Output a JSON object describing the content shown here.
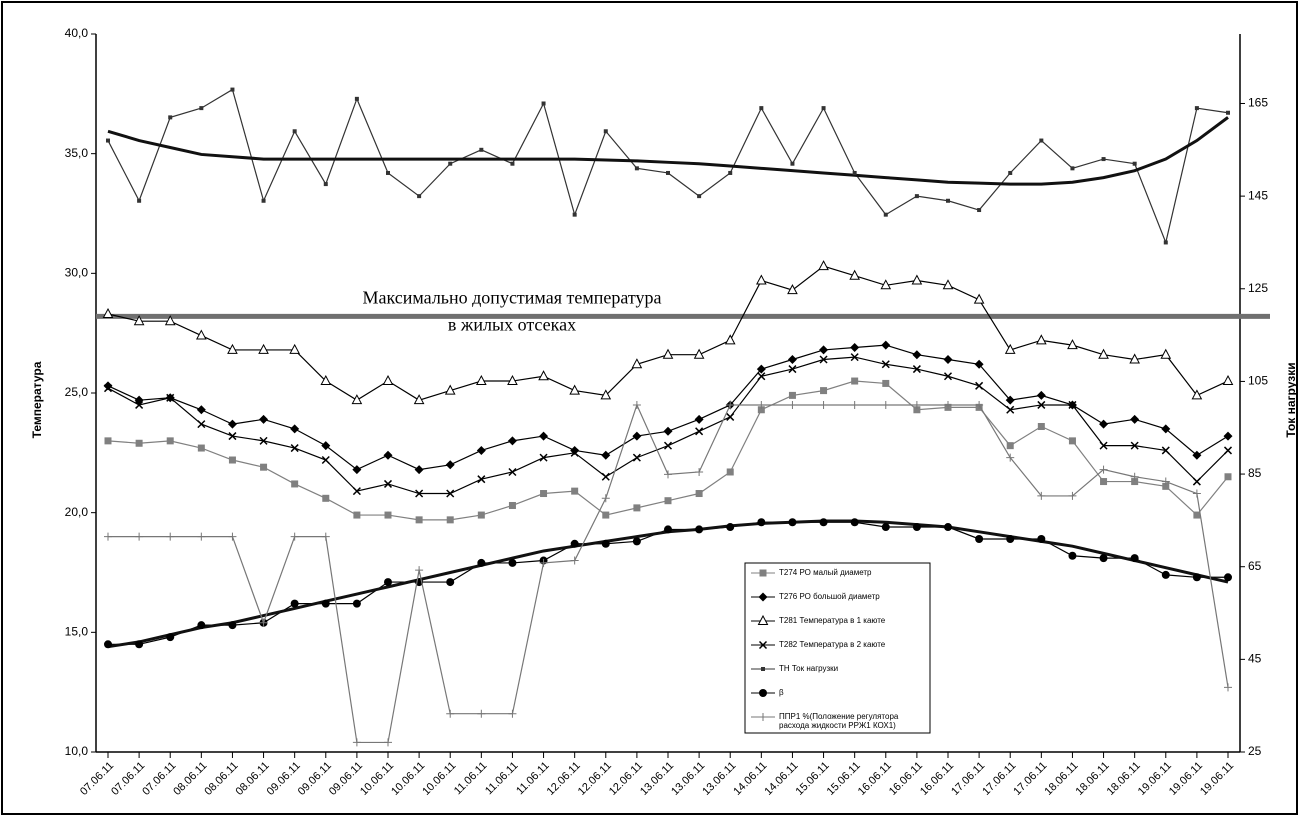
{
  "chart_data": {
    "type": "line",
    "y_label": "Температура",
    "y2_label": "Ток нагрузки",
    "categories": [
      "07.06.11",
      "07.06.11",
      "07.06.11",
      "08.06.11",
      "08.06.11",
      "08.06.11",
      "09.06.11",
      "09.06.11",
      "09.06.11",
      "10.06.11",
      "10.06.11",
      "10.06.11",
      "11.06.11",
      "11.06.11",
      "11.06.11",
      "12.06.11",
      "12.06.11",
      "12.06.11",
      "13.06.11",
      "13.06.11",
      "13.06.11",
      "14.06.11",
      "14.06.11",
      "15.06.11",
      "15.06.11",
      "16.06.11",
      "16.06.11",
      "16.06.11",
      "17.06.11",
      "17.06.11",
      "17.06.11",
      "18.06.11",
      "18.06.11",
      "18.06.11",
      "19.06.11",
      "19.06.11",
      "19.06.11"
    ],
    "ylim": [
      10,
      40
    ],
    "yticks": [
      {
        "value": 10,
        "label": "10,0"
      },
      {
        "value": 15,
        "label": "15,0"
      },
      {
        "value": 20,
        "label": "20,0"
      },
      {
        "value": 25,
        "label": "25,0"
      },
      {
        "value": 30,
        "label": "30,0"
      },
      {
        "value": 35,
        "label": "35,0"
      },
      {
        "value": 40,
        "label": "40,0"
      }
    ],
    "y2lim": [
      25,
      180
    ],
    "y2ticks": [
      25,
      45,
      65,
      85,
      105,
      125,
      145,
      165
    ],
    "threshold": {
      "value": 28.2,
      "color": "#707070",
      "lines": [
        "Максимально допустимая температура",
        "в жилых отсеках"
      ]
    },
    "series": [
      {
        "name": "Т274 РО малый диаметр",
        "color": "#808080",
        "marker": "square",
        "values": [
          23.0,
          22.9,
          23.0,
          22.7,
          22.2,
          21.9,
          21.2,
          20.6,
          19.9,
          19.9,
          19.7,
          19.7,
          19.9,
          20.3,
          20.8,
          20.9,
          19.9,
          20.2,
          20.5,
          20.8,
          21.7,
          24.3,
          24.9,
          25.1,
          25.5,
          25.4,
          24.3,
          24.4,
          24.4,
          22.8,
          23.6,
          23.0,
          21.3,
          21.3,
          21.1,
          19.9,
          21.5
        ]
      },
      {
        "name": "Т276 РО большой диаметр",
        "color": "#000000",
        "marker": "diamond",
        "values": [
          25.3,
          24.7,
          24.8,
          24.3,
          23.7,
          23.9,
          23.5,
          22.8,
          21.8,
          22.4,
          21.8,
          22.0,
          22.6,
          23.0,
          23.2,
          22.6,
          22.4,
          23.2,
          23.4,
          23.9,
          24.5,
          26.0,
          26.4,
          26.8,
          26.9,
          27.0,
          26.6,
          26.4,
          26.2,
          24.7,
          24.9,
          24.5,
          23.7,
          23.9,
          23.5,
          22.4,
          23.2
        ]
      },
      {
        "name": "Т281 Температура в 1 каюте",
        "color": "#000000",
        "marker": "triangle",
        "values": [
          28.3,
          28.0,
          28.0,
          27.4,
          26.8,
          26.8,
          26.8,
          25.5,
          24.7,
          25.5,
          24.7,
          25.1,
          25.5,
          25.5,
          25.7,
          25.1,
          24.9,
          26.2,
          26.6,
          26.6,
          27.2,
          29.7,
          29.3,
          30.3,
          29.9,
          29.5,
          29.7,
          29.5,
          28.9,
          26.8,
          27.2,
          27.0,
          26.6,
          26.4,
          26.6,
          24.9,
          25.5
        ]
      },
      {
        "name": "Т282 Температура в 2 каюте",
        "color": "#000000",
        "marker": "cross",
        "values": [
          25.2,
          24.5,
          24.8,
          23.7,
          23.2,
          23.0,
          22.7,
          22.2,
          20.9,
          21.2,
          20.8,
          20.8,
          21.4,
          21.7,
          22.3,
          22.5,
          21.5,
          22.3,
          22.8,
          23.4,
          24.0,
          25.7,
          26.0,
          26.4,
          26.5,
          26.2,
          26.0,
          25.7,
          25.3,
          24.3,
          24.5,
          24.5,
          22.8,
          22.8,
          22.6,
          21.3,
          22.6
        ]
      },
      {
        "name": "ТН Ток нагрузки",
        "color": "#333333",
        "marker": "dot",
        "axis": "y2",
        "values": [
          157,
          144,
          162,
          164,
          168,
          144,
          159,
          147.6,
          166,
          150,
          145,
          152,
          155,
          152,
          165,
          141,
          159,
          151,
          150,
          145,
          150,
          164,
          152,
          164,
          150,
          141,
          145,
          144,
          142,
          150,
          157,
          151,
          153,
          152,
          135,
          164,
          163
        ],
        "trend": [
          159,
          157,
          155.5,
          154,
          153.5,
          153,
          153,
          153,
          153,
          153,
          153,
          153,
          153,
          153,
          153,
          153,
          152.8,
          152.6,
          152.3,
          152,
          151.5,
          151,
          150.5,
          150,
          149.5,
          149,
          148.5,
          148,
          147.8,
          147.6,
          147.6,
          148,
          149,
          150.5,
          153,
          157,
          162
        ]
      },
      {
        "name": "β",
        "color": "#000000",
        "marker": "circle",
        "values": [
          14.5,
          14.5,
          14.8,
          15.3,
          15.3,
          15.4,
          16.2,
          16.2,
          16.2,
          17.1,
          17.1,
          17.1,
          17.9,
          17.9,
          18.0,
          18.7,
          18.7,
          18.8,
          19.3,
          19.3,
          19.4,
          19.6,
          19.6,
          19.6,
          19.6,
          19.4,
          19.4,
          19.4,
          18.9,
          18.9,
          18.9,
          18.2,
          18.1,
          18.1,
          17.4,
          17.3,
          17.3
        ],
        "trend": [
          14.4,
          14.6,
          14.9,
          15.2,
          15.4,
          15.7,
          16.0,
          16.3,
          16.6,
          16.9,
          17.2,
          17.5,
          17.8,
          18.1,
          18.4,
          18.6,
          18.8,
          19.0,
          19.2,
          19.3,
          19.45,
          19.55,
          19.6,
          19.65,
          19.65,
          19.6,
          19.5,
          19.4,
          19.2,
          19.0,
          18.8,
          18.6,
          18.3,
          18.0,
          17.7,
          17.4,
          17.1
        ]
      },
      {
        "name": "ППР1 %(Положение регулятора расхода жидкости РРЖ1 КОХ1)",
        "color": "#777777",
        "marker": "plus",
        "values": [
          19.0,
          19.0,
          19.0,
          19.0,
          19.0,
          15.4,
          19.0,
          19.0,
          10.4,
          10.4,
          17.6,
          11.6,
          11.6,
          11.6,
          17.9,
          18.0,
          20.6,
          24.5,
          21.6,
          21.7,
          24.5,
          24.5,
          24.5,
          24.5,
          24.5,
          24.5,
          24.5,
          24.5,
          24.5,
          22.3,
          20.7,
          20.7,
          21.8,
          21.5,
          21.3,
          20.8,
          12.7
        ]
      }
    ]
  }
}
